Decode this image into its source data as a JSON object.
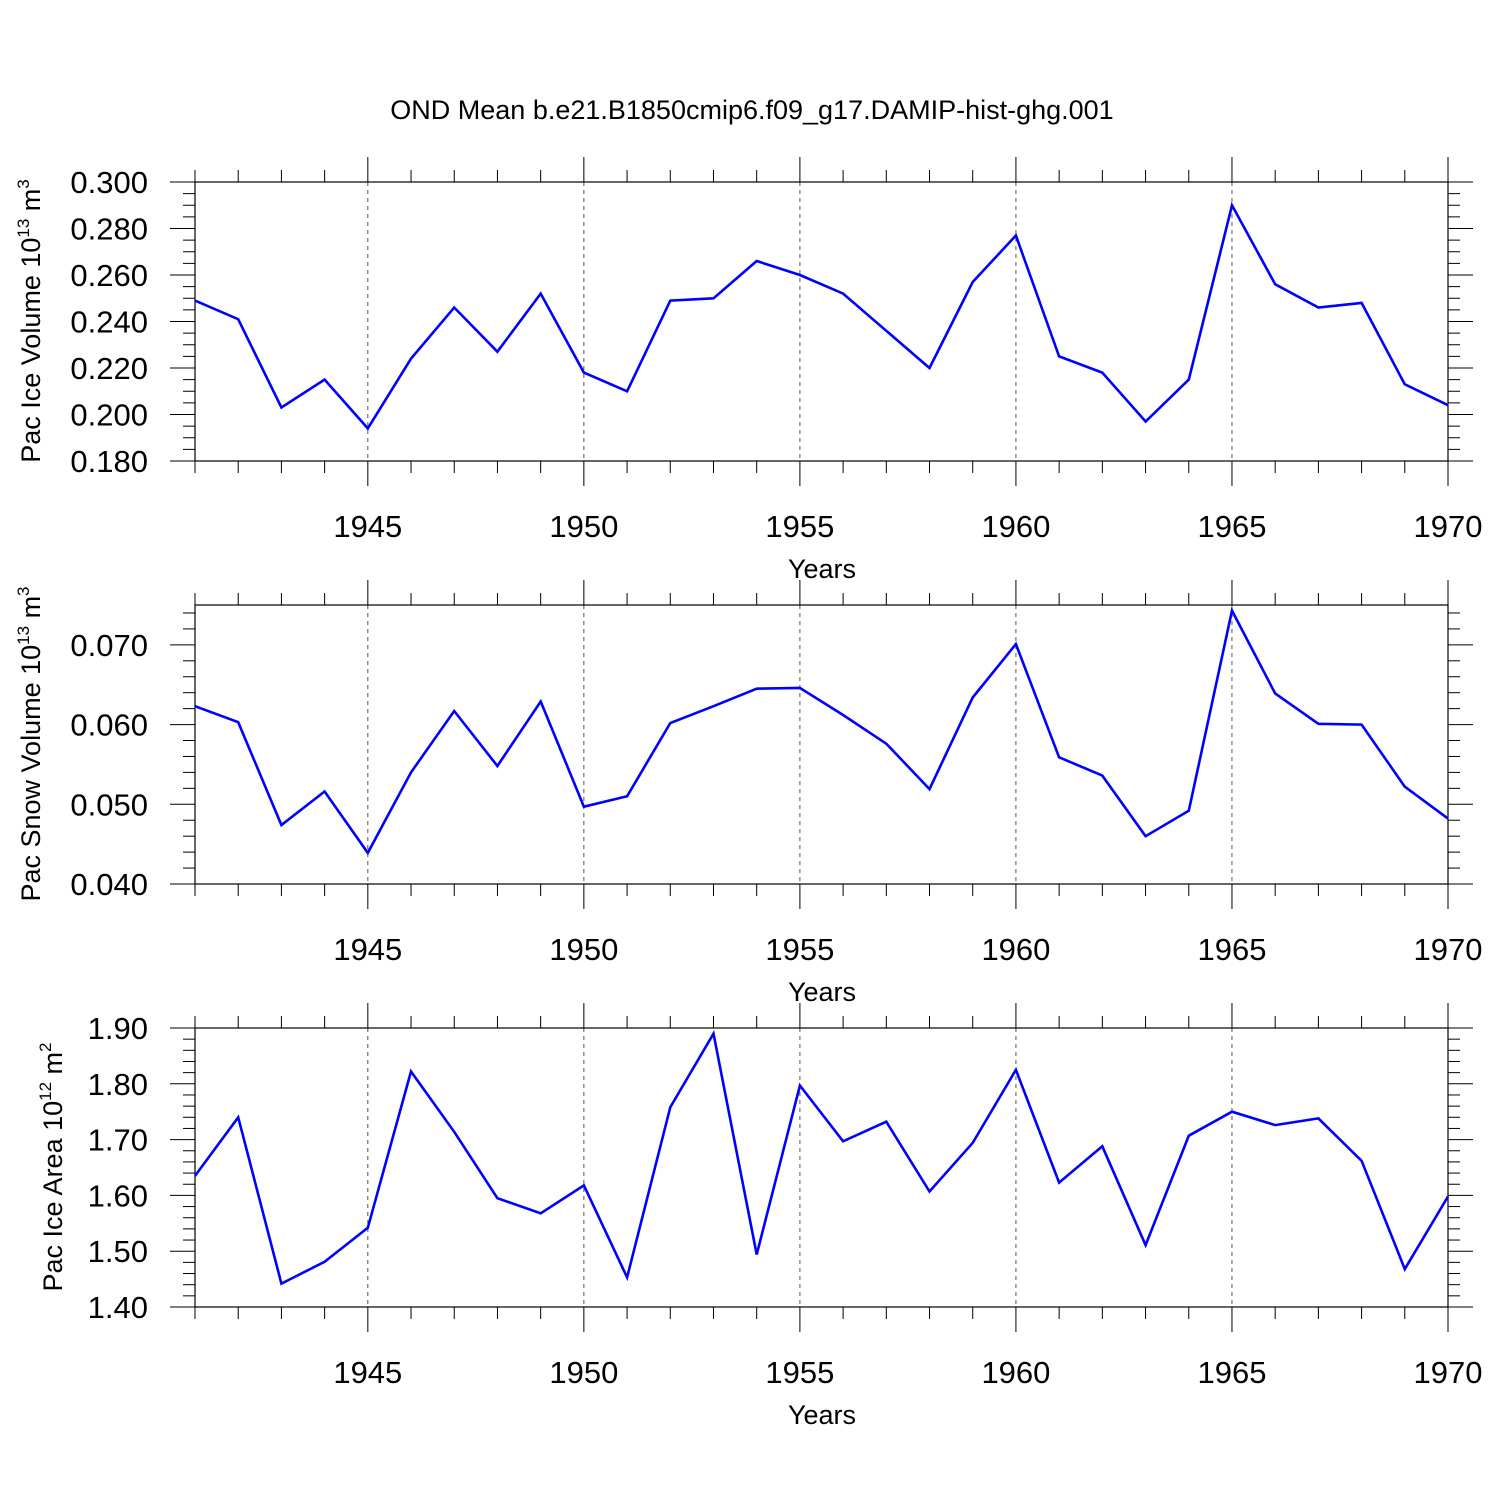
{
  "title": "OND Mean b.e21.B1850cmip6.f09_g17.DAMIP-hist-ghg.001",
  "style": {
    "line_color": "#0000ff",
    "axis_color": "#000000",
    "grid_color": "#555555"
  },
  "chart_data": [
    {
      "type": "line",
      "ylabel": {
        "prefix": "Pac Ice Volume 10",
        "exp": "13",
        "unit": " m",
        "unit_exp": "3"
      },
      "xlabel": "Years",
      "xlim": [
        1941,
        1970
      ],
      "ylim": [
        0.18,
        0.3
      ],
      "xticks": [
        "1945",
        "1950",
        "1955",
        "1960",
        "1965",
        "1970"
      ],
      "yticks": [
        "0.180",
        "0.200",
        "0.220",
        "0.240",
        "0.260",
        "0.280",
        "0.300"
      ],
      "grid_x": [
        1945,
        1950,
        1955,
        1960,
        1965
      ],
      "series": [
        {
          "name": "Pac Ice Volume",
          "x": [
            1941,
            1942,
            1943,
            1944,
            1945,
            1946,
            1947,
            1948,
            1949,
            1950,
            1951,
            1952,
            1953,
            1954,
            1955,
            1956,
            1957,
            1958,
            1959,
            1960,
            1961,
            1962,
            1963,
            1964,
            1965,
            1966,
            1967,
            1968,
            1969,
            1970
          ],
          "values": [
            0.249,
            0.241,
            0.203,
            0.215,
            0.194,
            0.224,
            0.246,
            0.227,
            0.252,
            0.218,
            0.21,
            0.249,
            0.25,
            0.266,
            0.26,
            0.252,
            0.236,
            0.22,
            0.257,
            0.277,
            0.225,
            0.218,
            0.197,
            0.215,
            0.29,
            0.256,
            0.246,
            0.248,
            0.213,
            0.204
          ]
        }
      ]
    },
    {
      "type": "line",
      "ylabel": {
        "prefix": "Pac Snow Volume 10",
        "exp": "13",
        "unit": " m",
        "unit_exp": "3"
      },
      "xlabel": "Years",
      "xlim": [
        1941,
        1970
      ],
      "ylim": [
        0.04,
        0.075
      ],
      "xticks": [
        "1945",
        "1950",
        "1955",
        "1960",
        "1965",
        "1970"
      ],
      "yticks": [
        "0.040",
        "0.050",
        "0.060",
        "0.070"
      ],
      "grid_x": [
        1945,
        1950,
        1955,
        1960,
        1965
      ],
      "series": [
        {
          "name": "Pac Snow Volume",
          "x": [
            1941,
            1942,
            1943,
            1944,
            1945,
            1946,
            1947,
            1948,
            1949,
            1950,
            1951,
            1952,
            1953,
            1954,
            1955,
            1956,
            1957,
            1958,
            1959,
            1960,
            1961,
            1962,
            1963,
            1964,
            1965,
            1966,
            1967,
            1968,
            1969,
            1970
          ],
          "values": [
            0.0623,
            0.0603,
            0.0474,
            0.0516,
            0.0439,
            0.054,
            0.0617,
            0.0548,
            0.0629,
            0.0497,
            0.051,
            0.0602,
            0.0623,
            0.0645,
            0.0646,
            0.0612,
            0.0576,
            0.0519,
            0.0634,
            0.0701,
            0.0559,
            0.0536,
            0.046,
            0.0492,
            0.0743,
            0.0639,
            0.0601,
            0.06,
            0.0522,
            0.0482
          ]
        }
      ]
    },
    {
      "type": "line",
      "ylabel": {
        "prefix": "Pac Ice Area 10",
        "exp": "12",
        "unit": " m",
        "unit_exp": "2"
      },
      "xlabel": "Years",
      "xlim": [
        1941,
        1970
      ],
      "ylim": [
        1.4,
        1.9
      ],
      "xticks": [
        "1945",
        "1950",
        "1955",
        "1960",
        "1965",
        "1970"
      ],
      "yticks": [
        "1.40",
        "1.50",
        "1.60",
        "1.70",
        "1.80",
        "1.90"
      ],
      "grid_x": [
        1945,
        1950,
        1955,
        1960,
        1965
      ],
      "series": [
        {
          "name": "Pac Ice Area",
          "x": [
            1941,
            1942,
            1943,
            1944,
            1945,
            1946,
            1947,
            1948,
            1949,
            1950,
            1951,
            1952,
            1953,
            1954,
            1955,
            1956,
            1957,
            1958,
            1959,
            1960,
            1961,
            1962,
            1963,
            1964,
            1965,
            1966,
            1967,
            1968,
            1969,
            1970
          ],
          "values": [
            1.635,
            1.74,
            1.442,
            1.481,
            1.542,
            1.822,
            1.714,
            1.595,
            1.568,
            1.618,
            1.453,
            1.758,
            1.89,
            1.494,
            1.797,
            1.697,
            1.732,
            1.607,
            1.694,
            1.825,
            1.623,
            1.688,
            1.511,
            1.707,
            1.75,
            1.726,
            1.738,
            1.662,
            1.468,
            1.598
          ]
        }
      ]
    }
  ]
}
